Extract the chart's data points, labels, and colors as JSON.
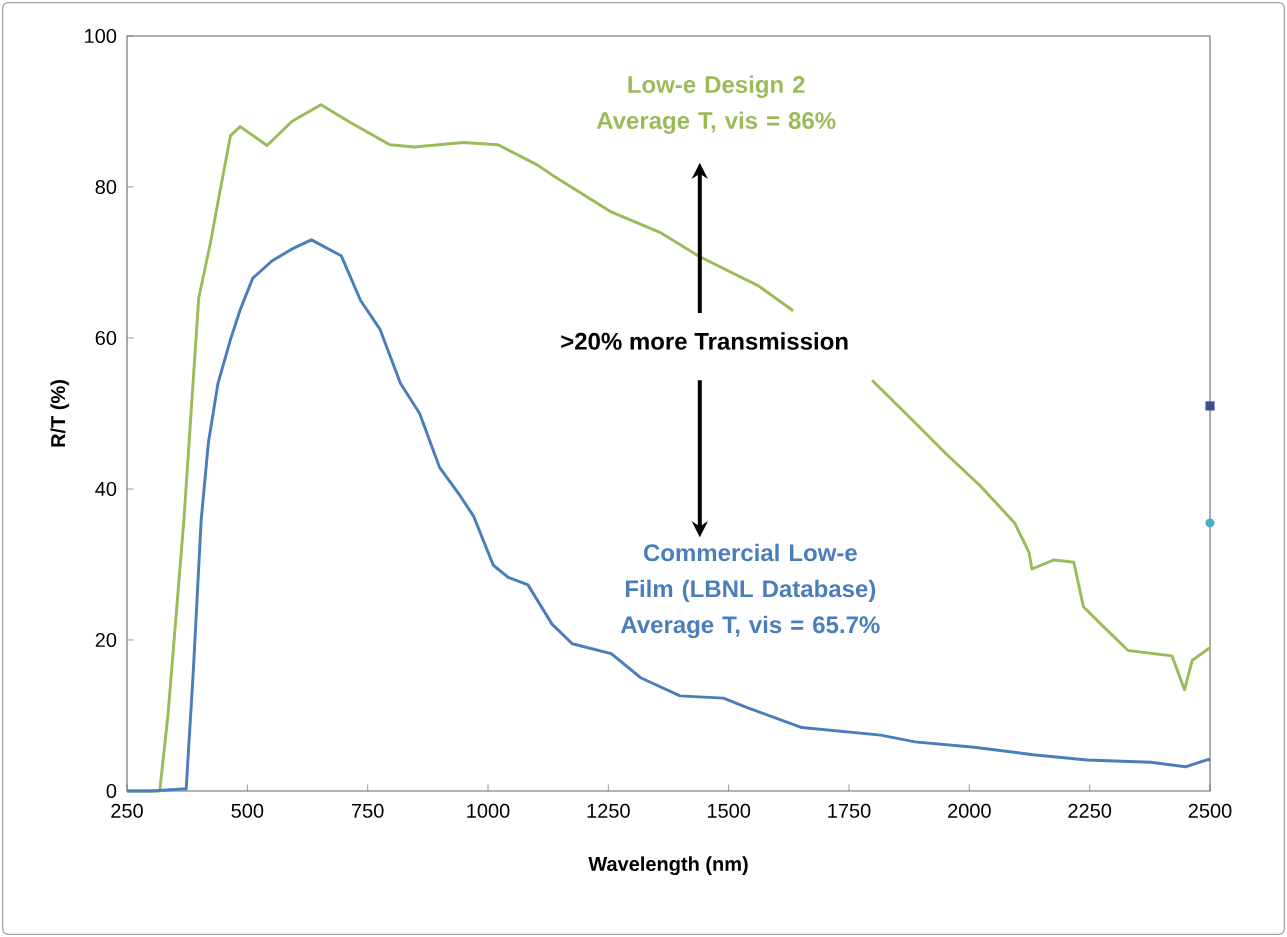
{
  "chart_data": {
    "type": "line",
    "xlabel": "Wavelength (nm)",
    "ylabel": "R/T (%)",
    "xlim": [
      250,
      2500
    ],
    "ylim": [
      0,
      100
    ],
    "xticks": [
      250,
      500,
      750,
      1000,
      1250,
      1500,
      1750,
      2000,
      2250,
      2500
    ],
    "yticks": [
      0,
      20,
      40,
      60,
      80,
      100
    ],
    "grid": false,
    "marker": "none",
    "line_style": "solid",
    "annotations": [
      ">20% more Transmission"
    ],
    "series": [
      {
        "name": "Low-e Design 2 Average T, vis = 86%",
        "color": "#9bbb59",
        "x": [
          250,
          310,
          318,
          335,
          368,
          399,
          424,
          439,
          465,
          485,
          541,
          593,
          653,
          715,
          796,
          847,
          949,
          1021,
          1103,
          1133,
          1256,
          1357,
          1439,
          1562,
          1634,
          1640,
          1798,
          1890,
          1951,
          2023,
          2094,
          2124,
          2130,
          2176,
          2217,
          2237,
          2278,
          2330,
          2421,
          2447,
          2463,
          2498,
          2500
        ],
        "values": [
          0,
          0,
          0,
          10,
          35.7,
          65.3,
          72.8,
          78,
          86.8,
          88,
          85.5,
          88.7,
          90.9,
          88.5,
          85.6,
          85.3,
          85.9,
          85.6,
          82.9,
          81.6,
          76.7,
          74,
          70.8,
          66.9,
          63.6,
          null,
          54.4,
          48.6,
          44.7,
          40.4,
          35.5,
          31.6,
          29.4,
          30.6,
          30.3,
          24.4,
          21.8,
          18.6,
          17.9,
          13.4,
          17.3,
          18.9,
          19
        ]
      },
      {
        "name": "Commercial Low-e Film (LBNL Database) Average T, vis = 65.7%",
        "color": "#4a7ebb",
        "x": [
          250,
          300,
          373,
          388,
          404,
          419,
          439,
          465,
          485,
          511,
          551,
          593,
          633,
          695,
          735,
          776,
          818,
          858,
          899,
          940,
          970,
          1011,
          1042,
          1083,
          1133,
          1175,
          1256,
          1317,
          1399,
          1489,
          1540,
          1652,
          1816,
          1887,
          2010,
          2132,
          2245,
          2377,
          2449,
          2497,
          2500
        ],
        "values": [
          0,
          0,
          0.3,
          16.2,
          35.8,
          46.1,
          54,
          59.8,
          63.7,
          67.9,
          70.2,
          71.8,
          73,
          70.9,
          65,
          61.1,
          54,
          50,
          42.9,
          39.3,
          36.4,
          29.9,
          28.3,
          27.3,
          22.1,
          19.5,
          18.2,
          15,
          12.6,
          12.3,
          11,
          8.4,
          7.4,
          6.5,
          5.8,
          4.8,
          4.1,
          3.8,
          3.2,
          4.2,
          4
        ]
      },
      {
        "type": "scatter",
        "marker": "square",
        "color": "#3f4f8f",
        "x": [
          2500
        ],
        "values": [
          51
        ]
      },
      {
        "type": "scatter",
        "marker": "circle",
        "color": "#4bacc6",
        "x": [
          2500
        ],
        "values": [
          35.5
        ]
      }
    ]
  }
}
